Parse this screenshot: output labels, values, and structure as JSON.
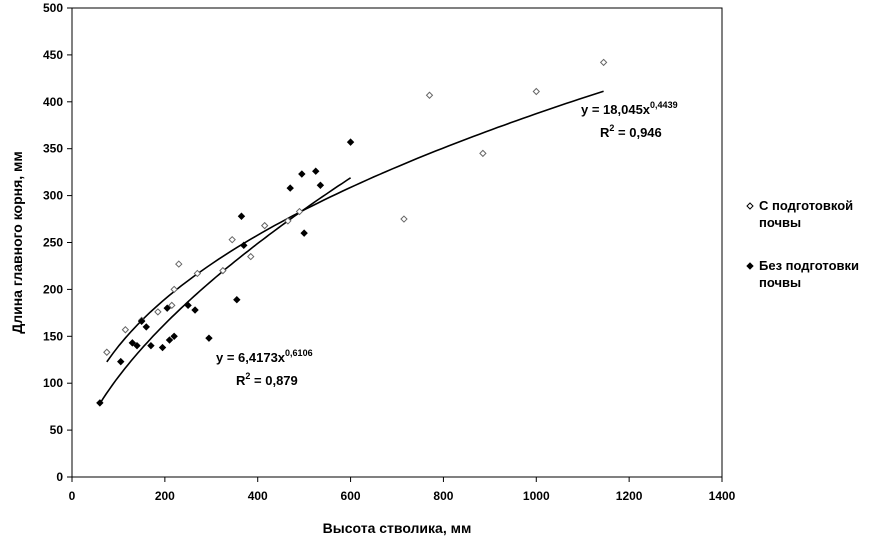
{
  "chart_data": {
    "type": "scatter",
    "xlabel": "Высота стволика, мм",
    "ylabel": "Длина главного корня, мм",
    "xlim": [
      0,
      1400
    ],
    "ylim": [
      0,
      500
    ],
    "x_ticks": [
      0,
      200,
      400,
      600,
      800,
      1000,
      1200,
      1400
    ],
    "y_ticks": [
      0,
      50,
      100,
      150,
      200,
      250,
      300,
      350,
      400,
      450,
      500
    ],
    "grid": false,
    "legend_placement": "right",
    "series": [
      {
        "name": "С подготовкой почвы",
        "legend_line1": "С подготовкой",
        "legend_line2": "почвы",
        "marker": "open-diamond",
        "color": "#000000",
        "x": [
          75,
          115,
          150,
          185,
          215,
          220,
          230,
          270,
          325,
          345,
          385,
          415,
          465,
          490,
          715,
          770,
          885,
          1000,
          1145
        ],
        "y": [
          133,
          157,
          167,
          176,
          183,
          200,
          227,
          217,
          220,
          253,
          235,
          268,
          273,
          283,
          275,
          407,
          345,
          411,
          442
        ],
        "trend": {
          "a": 18.045,
          "b": 0.4439,
          "x_range": [
            75,
            1145
          ],
          "eq_prefix": "y = 18,045x",
          "eq_exp": "0,4439",
          "r2_prefix": "R",
          "r2_exp": "2",
          "r2_suffix": " = 0,946"
        }
      },
      {
        "name": "Без подготовки почвы",
        "legend_line1": "Без подготовки",
        "legend_line2": "почвы",
        "marker": "filled-diamond",
        "color": "#000000",
        "x": [
          60,
          105,
          130,
          140,
          150,
          160,
          170,
          195,
          205,
          210,
          220,
          250,
          265,
          295,
          355,
          365,
          370,
          470,
          495,
          500,
          525,
          535,
          600
        ],
        "y": [
          79,
          123,
          143,
          140,
          166,
          160,
          140,
          138,
          180,
          146,
          150,
          183,
          178,
          148,
          189,
          278,
          247,
          308,
          323,
          260,
          326,
          311,
          357
        ],
        "trend": {
          "a": 6.4173,
          "b": 0.6106,
          "x_range": [
            60,
            600
          ],
          "eq_prefix": "y = 6,4173x",
          "eq_exp": "0,6106",
          "r2_prefix": "R",
          "r2_exp": "2",
          "r2_suffix": " = 0,879"
        }
      }
    ]
  }
}
